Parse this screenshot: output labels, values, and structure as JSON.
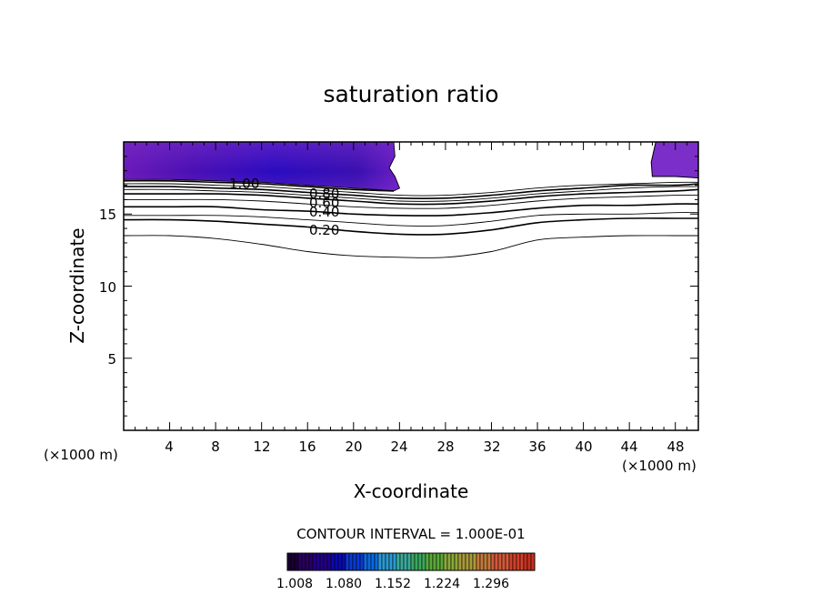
{
  "chart_data": {
    "type": "contour",
    "title": "saturation ratio",
    "xlabel": "X-coordinate",
    "ylabel": "Z-coordinate",
    "x_unit": "(×1000 m)",
    "xlim": [
      0,
      50
    ],
    "ylim": [
      0,
      20
    ],
    "xticks": [
      "4",
      "8",
      "12",
      "16",
      "20",
      "24",
      "28",
      "32",
      "36",
      "40",
      "44",
      "48"
    ],
    "yticks": [
      "5",
      "10",
      "15"
    ],
    "contour_interval_text": "CONTOUR INTERVAL = 1.000E-01",
    "contour_labels": [
      "1.00",
      "0.80",
      "0.60",
      "0.40",
      "0.20"
    ],
    "contours": [
      {
        "level": 0.1,
        "x": [
          0,
          4,
          8,
          12,
          16,
          20,
          24,
          28,
          32,
          36,
          40,
          44,
          48,
          50
        ],
        "z": [
          13.5,
          13.5,
          13.3,
          12.9,
          12.4,
          12.1,
          12.0,
          12.0,
          12.4,
          13.2,
          13.4,
          13.5,
          13.5,
          13.5
        ]
      },
      {
        "level": 0.2,
        "x": [
          0,
          4,
          8,
          12,
          16,
          20,
          24,
          28,
          32,
          36,
          40,
          44,
          48,
          50
        ],
        "z": [
          14.6,
          14.6,
          14.5,
          14.3,
          14.1,
          13.8,
          13.6,
          13.6,
          13.9,
          14.4,
          14.6,
          14.7,
          14.7,
          14.7
        ]
      },
      {
        "level": 0.3,
        "x": [
          0,
          4,
          8,
          12,
          16,
          20,
          24,
          28,
          32,
          36,
          40,
          44,
          48,
          50
        ],
        "z": [
          14.9,
          14.9,
          14.9,
          14.8,
          14.6,
          14.4,
          14.2,
          14.2,
          14.5,
          14.9,
          15.0,
          15.0,
          15.1,
          15.1
        ]
      },
      {
        "level": 0.4,
        "x": [
          0,
          4,
          8,
          12,
          16,
          20,
          24,
          28,
          32,
          36,
          40,
          44,
          48,
          50
        ],
        "z": [
          15.5,
          15.5,
          15.5,
          15.3,
          15.2,
          15.0,
          14.9,
          14.9,
          15.1,
          15.4,
          15.6,
          15.6,
          15.7,
          15.7
        ]
      },
      {
        "level": 0.5,
        "x": [
          0,
          4,
          8,
          12,
          16,
          20,
          24,
          28,
          32,
          36,
          40,
          44,
          48,
          50
        ],
        "z": [
          16.0,
          16.0,
          16.0,
          15.9,
          15.7,
          15.5,
          15.4,
          15.4,
          15.6,
          15.9,
          16.1,
          16.2,
          16.3,
          16.3
        ]
      },
      {
        "level": 0.6,
        "x": [
          0,
          4,
          8,
          12,
          16,
          20,
          24,
          28,
          32,
          36,
          40,
          44,
          48,
          50
        ],
        "z": [
          16.4,
          16.4,
          16.4,
          16.3,
          16.1,
          15.9,
          15.7,
          15.7,
          15.9,
          16.2,
          16.4,
          16.5,
          16.6,
          16.7
        ]
      },
      {
        "level": 0.7,
        "x": [
          0,
          4,
          8,
          12,
          16,
          20,
          24,
          28,
          32,
          36,
          40,
          44,
          48,
          50
        ],
        "z": [
          16.7,
          16.7,
          16.6,
          16.5,
          16.3,
          16.1,
          15.9,
          15.9,
          16.1,
          16.4,
          16.6,
          16.8,
          16.9,
          16.9
        ]
      },
      {
        "level": 0.8,
        "x": [
          0,
          4,
          8,
          12,
          16,
          20,
          24,
          28,
          32,
          36,
          40,
          44,
          48,
          50
        ],
        "z": [
          16.9,
          16.9,
          16.8,
          16.7,
          16.5,
          16.3,
          16.1,
          16.1,
          16.3,
          16.6,
          16.8,
          17.0,
          17.0,
          17.1
        ]
      },
      {
        "level": 0.9,
        "x": [
          0,
          4,
          8,
          12,
          16,
          20,
          24,
          28,
          32,
          36,
          40,
          44,
          48,
          50
        ],
        "z": [
          17.1,
          17.1,
          17.0,
          16.9,
          16.7,
          16.5,
          16.3,
          16.3,
          16.5,
          16.8,
          17.0,
          17.1,
          17.2,
          17.2
        ]
      },
      {
        "level": 1.0,
        "x": [
          0,
          4,
          8,
          12,
          16,
          20,
          23.5
        ],
        "z": [
          17.3,
          17.3,
          17.2,
          17.1,
          16.9,
          16.7,
          16.6
        ]
      }
    ],
    "supersaturated_regions": [
      {
        "x": [
          0,
          23.5,
          23.6,
          23.1,
          23.6,
          24.0,
          23.5,
          22,
          20,
          16,
          12,
          8,
          4,
          0
        ],
        "z": [
          20,
          20,
          19.0,
          18.2,
          17.6,
          16.8,
          16.6,
          16.7,
          16.8,
          17.0,
          17.2,
          17.3,
          17.4,
          17.4
        ]
      },
      {
        "x": [
          46.3,
          50,
          50,
          48,
          46.0,
          45.9,
          46.3
        ],
        "z": [
          20,
          20,
          17.5,
          17.6,
          17.6,
          18.6,
          20
        ]
      }
    ],
    "colorbar": {
      "ticks": [
        "1.008",
        "1.080",
        "1.152",
        "1.224",
        "1.296"
      ],
      "colors": [
        "#1a0033",
        "#2a0060",
        "#22008a",
        "#0a0ab0",
        "#0a3ad0",
        "#0a6ae0",
        "#2a9ad0",
        "#3aaa9a",
        "#3aa860",
        "#5aa83a",
        "#8aa83a",
        "#aa9a3a",
        "#c27a3a",
        "#d05a3a",
        "#d0402a",
        "#c8301e"
      ]
    },
    "colors": {
      "axis": "#000000",
      "contour": "#000000",
      "fill_dark": "#3d0a8c",
      "fill_mid": "#5a1aaa",
      "fill_edge": "#7b2ec8",
      "fill_core": "#1010b8"
    }
  }
}
